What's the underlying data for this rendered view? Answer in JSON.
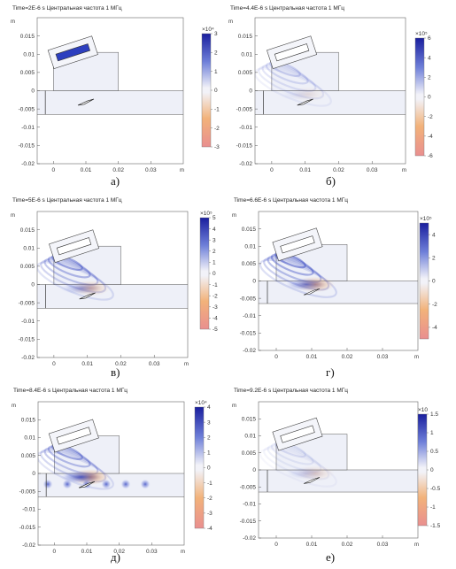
{
  "figure": {
    "captions": [
      "а)",
      "б)",
      "в)",
      "г)",
      "д)",
      "е)"
    ]
  },
  "chart_data": [
    {
      "type": "heatmap",
      "title": "Time=2E-6 s   Центральная частота 1 МГц",
      "xlabel": "m",
      "ylabel": "m",
      "xlim": [
        -0.005,
        0.04
      ],
      "ylim": [
        -0.02,
        0.02
      ],
      "xticks": [
        "0",
        "0.01",
        "0.02",
        "0.03"
      ],
      "yticks": [
        "0.015",
        "0.01",
        "0.005",
        "0",
        "-0.005",
        "-0.01",
        "-0.015",
        "-0.02"
      ],
      "colorbar": {
        "exponent": "×10⁴",
        "ticks": [
          "3",
          "2",
          "1",
          "0",
          "-1",
          "-2",
          "-3"
        ],
        "range": [
          -3,
          3
        ]
      },
      "caption": "а)"
    },
    {
      "type": "heatmap",
      "title": "Time=4.4E-6 s Центральная частота 1 МГц",
      "xlabel": "m",
      "ylabel": "m",
      "xlim": [
        -0.005,
        0.04
      ],
      "ylim": [
        -0.02,
        0.02
      ],
      "xticks": [
        "0",
        "0.01",
        "0.02",
        "0.03"
      ],
      "yticks": [
        "0.015",
        "0.01",
        "0.005",
        "0",
        "-0.005",
        "-0.01",
        "-0.015",
        "-0.02"
      ],
      "colorbar": {
        "exponent": "×10⁵",
        "ticks": [
          "6",
          "4",
          "2",
          "0",
          "-2",
          "-4",
          "-6"
        ],
        "range": [
          -6,
          6
        ]
      },
      "caption": "б)"
    },
    {
      "type": "heatmap",
      "title": "Time=5E-6 s    Центральная частота 1 МГц",
      "xlabel": "m",
      "ylabel": "m",
      "xlim": [
        -0.005,
        0.04
      ],
      "ylim": [
        -0.02,
        0.02
      ],
      "xticks": [
        "0",
        "0.01",
        "0.02",
        "0.03"
      ],
      "yticks": [
        "0.015",
        "0.01",
        "0.005",
        "0",
        "-0.005",
        "-0.01",
        "-0.015",
        "-0.02"
      ],
      "colorbar": {
        "exponent": "×10⁵",
        "ticks": [
          "5",
          "4",
          "3",
          "2",
          "1",
          "0",
          "-1",
          "-2",
          "-3",
          "-4",
          "-5"
        ],
        "range": [
          -5,
          5
        ]
      },
      "caption": "в)"
    },
    {
      "type": "heatmap",
      "title": "Time=6.6E-6 s Центральная частота 1 МГц",
      "xlabel": "m",
      "ylabel": "m",
      "xlim": [
        -0.005,
        0.04
      ],
      "ylim": [
        -0.02,
        0.02
      ],
      "xticks": [
        "0",
        "0.01",
        "0.02",
        "0.03"
      ],
      "yticks": [
        "0.015",
        "0.01",
        "0.005",
        "0",
        "-0.005",
        "-0.01",
        "-0.015",
        "-0.02"
      ],
      "colorbar": {
        "exponent": "×10⁵",
        "ticks": [
          "4",
          "2",
          "0",
          "-2",
          "-4"
        ],
        "range": [
          -5,
          5
        ]
      },
      "caption": "г)"
    },
    {
      "type": "heatmap",
      "title": "Time=8.4E-6 s Центральная частота 1 МГц",
      "xlabel": "m",
      "ylabel": "m",
      "xlim": [
        -0.005,
        0.04
      ],
      "ylim": [
        -0.02,
        0.02
      ],
      "xticks": [
        "0",
        "0.01",
        "0.02",
        "0.03"
      ],
      "yticks": [
        "0.015",
        "0.01",
        "0.005",
        "0",
        "-0.005",
        "-0.01",
        "-0.015",
        "-0.02"
      ],
      "colorbar": {
        "exponent": "×10⁴",
        "ticks": [
          "4",
          "3",
          "2",
          "1",
          "0",
          "-1",
          "-2",
          "-3",
          "-4"
        ],
        "range": [
          -4,
          4
        ]
      },
      "caption": "д)"
    },
    {
      "type": "heatmap",
      "title": "Time=9.2E-6 s Центральная частота 1 МГц",
      "xlabel": "m",
      "ylabel": "m",
      "xlim": [
        -0.005,
        0.04
      ],
      "ylim": [
        -0.02,
        0.02
      ],
      "xticks": [
        "0",
        "0.01",
        "0.02",
        "0.03"
      ],
      "yticks": [
        "0.015",
        "0.01",
        "0.005",
        "0",
        "-0.005",
        "-0.01",
        "-0.015",
        "-0.02"
      ],
      "colorbar": {
        "exponent": "×10",
        "ticks": [
          "1.5",
          "1",
          "0.5",
          "0",
          "-0.5",
          "-1",
          "-1.5"
        ],
        "range": [
          -1.5,
          1.5
        ]
      },
      "caption": "е)"
    }
  ]
}
